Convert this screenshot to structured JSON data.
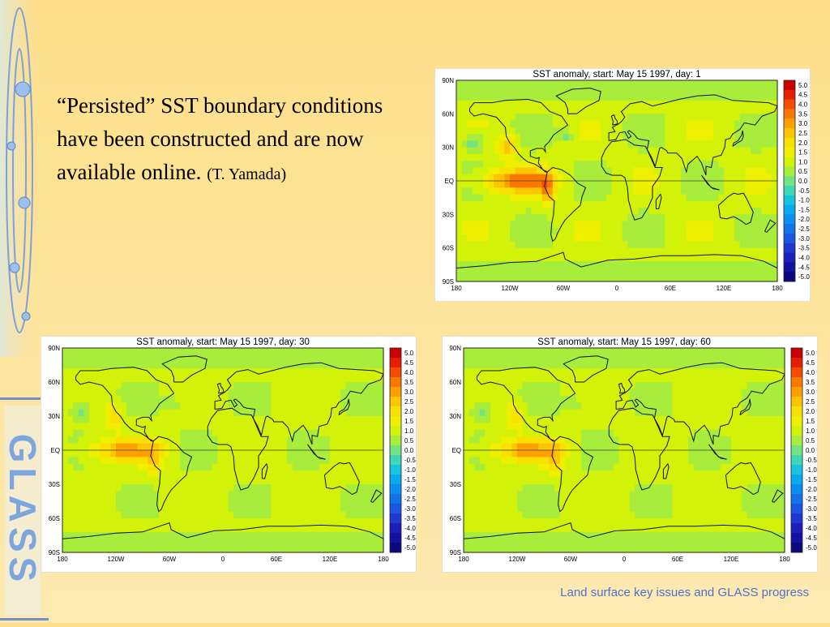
{
  "text": {
    "main": "“Persisted” SST boundary conditions have been constructed and are now available online.",
    "credit": "(T. Yamada)"
  },
  "footer": "Land surface key issues and GLASS progress",
  "logo": "GLASS",
  "map_axes": {
    "lat_labels": [
      "90N",
      "60N",
      "30N",
      "EQ",
      "30S",
      "60S",
      "90S"
    ],
    "lon_labels": [
      "180",
      "120W",
      "60W",
      "0",
      "60E",
      "120E",
      "180"
    ]
  },
  "colorbar": {
    "labels": [
      "5.0",
      "4.5",
      "4.0",
      "3.5",
      "3.0",
      "2.5",
      "2.0",
      "1.5",
      "1.0",
      "0.5",
      "0.0",
      "-0.5",
      "-1.0",
      "-1.5",
      "-2.0",
      "-2.5",
      "-3.0",
      "-3.5",
      "-4.0",
      "-4.5",
      "-5.0"
    ],
    "colors": [
      "#c80000",
      "#e61e00",
      "#f54a00",
      "#fa7800",
      "#fca000",
      "#fdc400",
      "#f8e000",
      "#eef000",
      "#d2f20a",
      "#a8ec3c",
      "#72e482",
      "#40d8b4",
      "#18c4dc",
      "#08aaee",
      "#0a8ef0",
      "#1272ea",
      "#1a56e0",
      "#2038d0",
      "#1c20b8",
      "#1410a0",
      "#0c0880"
    ]
  },
  "maps": [
    {
      "title": "SST anomaly, start: May 15 1997, day: 1"
    },
    {
      "title": "SST anomaly, start: May 15 1997, day: 30"
    },
    {
      "title": "SST anomaly, start: May 15 1997, day: 60"
    }
  ]
}
